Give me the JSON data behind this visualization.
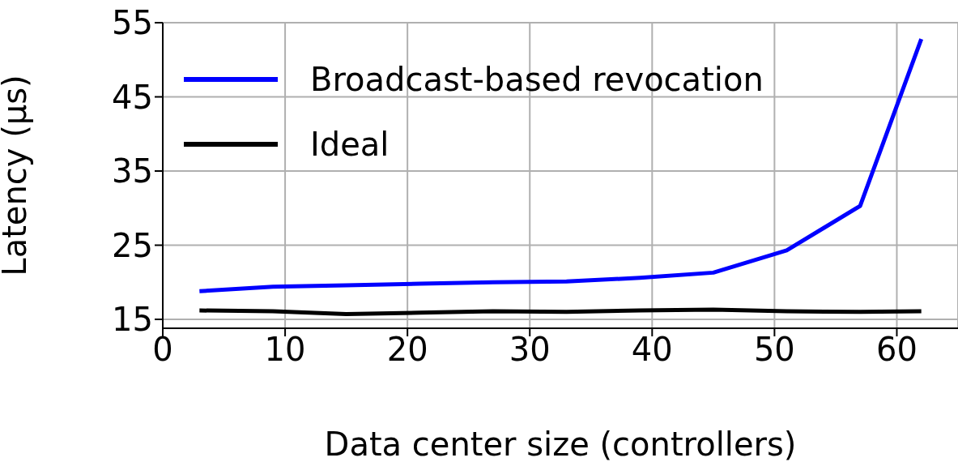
{
  "chart_data": {
    "type": "line",
    "xlabel": "Data center size (controllers)",
    "ylabel": "Latency (µs)",
    "x": [
      3,
      9,
      15,
      21,
      27,
      33,
      39,
      45,
      51,
      57,
      62
    ],
    "series": [
      {
        "name": "Broadcast-based revocation",
        "color": "#0000ff",
        "values": [
          18.8,
          19.4,
          19.6,
          19.8,
          20.0,
          20.1,
          20.6,
          21.3,
          24.3,
          30.3,
          52.8
        ]
      },
      {
        "name": "Ideal",
        "color": "#000000",
        "values": [
          16.2,
          16.1,
          15.7,
          15.9,
          16.1,
          16.0,
          16.2,
          16.3,
          16.1,
          16.0,
          16.1
        ]
      }
    ],
    "xlim": [
      0,
      65
    ],
    "xticks": [
      0,
      10,
      20,
      30,
      40,
      50,
      60
    ],
    "ylim": [
      13.8,
      55
    ],
    "yticks": [
      15,
      25,
      35,
      45,
      55
    ],
    "grid": true,
    "legend": "top left",
    "marker": "none",
    "line_style": "solid"
  }
}
